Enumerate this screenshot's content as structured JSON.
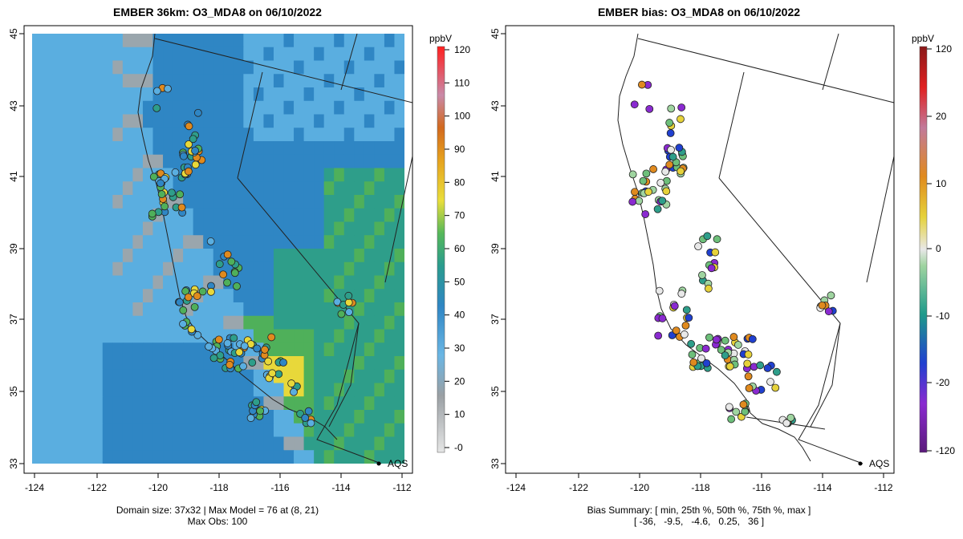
{
  "left_panel": {
    "title": "EMBER 36km: O3_MDA8 on 06/10/2022",
    "colorbar_unit": "ppbV",
    "colorbar_ticks": [
      "-0",
      "10",
      "20",
      "30",
      "40",
      "50",
      "60",
      "70",
      "80",
      "90",
      "100",
      "110",
      "120"
    ],
    "footer_line1": "Domain size: 37x32 | Max Model = 76 at (8, 21)",
    "footer_line2": "Max Obs: 100",
    "legend_label": "AQS"
  },
  "right_panel": {
    "title": "EMBER bias: O3_MDA8 on 06/10/2022",
    "colorbar_unit": "ppbV",
    "colorbar_ticks": [
      "120",
      "20",
      "10",
      "0",
      "-10",
      "-20",
      "-120"
    ],
    "footer_line1": "Bias Summary: [ min, 25th %, 50th %, 75th %, max ]",
    "footer_line2": "[ -36,   -9.5,   -4.6,   0.25,   36 ]",
    "legend_label": "AQS"
  },
  "x_ticks": [
    "-124",
    "-122",
    "-120",
    "-118",
    "-116",
    "-114",
    "-112"
  ],
  "y_ticks": [
    "33",
    "35",
    "37",
    "39",
    "41",
    "43",
    "45"
  ],
  "colors": {
    "ocean": "#5aaee0",
    "gray": "#9aa6ad",
    "blue": "#2f86c4",
    "teal": "#2e9e8a",
    "green": "#4fb05a",
    "yellow": "#e8d83a",
    "orange": "#e08a1e"
  }
}
